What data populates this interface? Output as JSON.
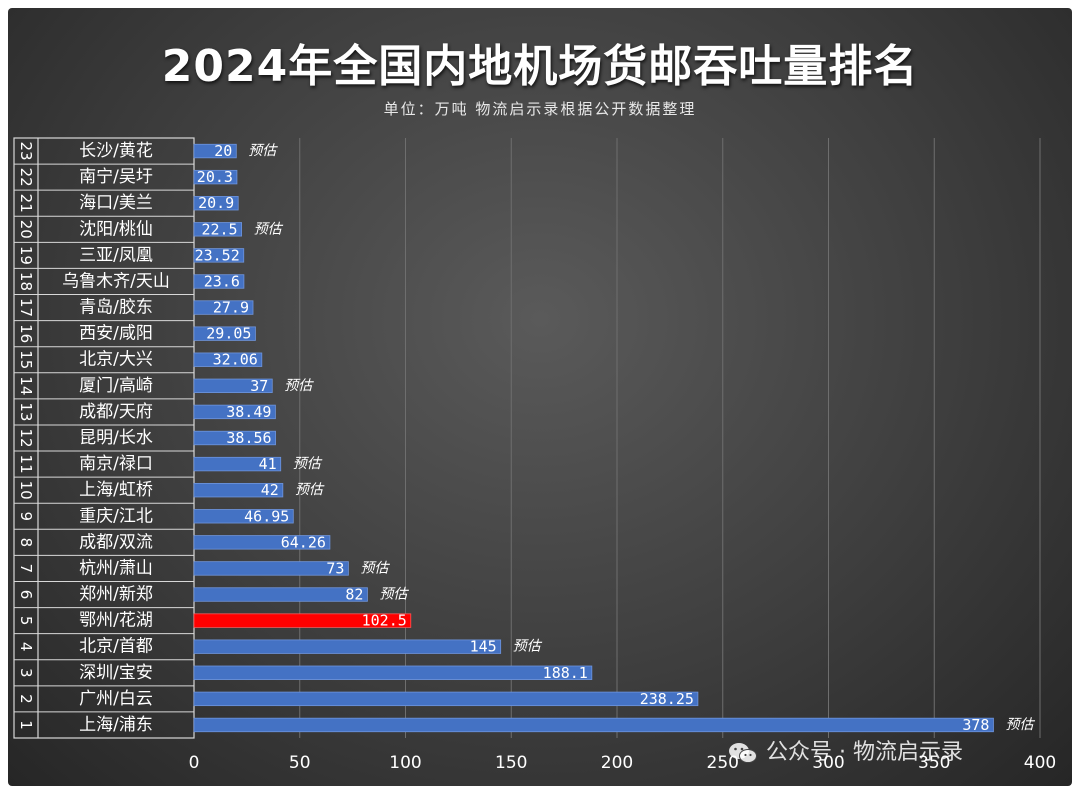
{
  "title": "2024年全国内地机场货邮吞吐量排名",
  "subtitle": "单位：万吨  物流启示录根据公开数据整理",
  "watermark": "公众号 · 物流启示录",
  "colors": {
    "bar": "#4472c4",
    "highlight": "#ff0000",
    "text": "#ffffff",
    "grid": "#6e6e6e"
  },
  "chart_data": {
    "type": "bar",
    "orientation": "horizontal",
    "xlim": [
      0,
      400
    ],
    "x_ticks": [
      "0",
      "50",
      "100",
      "150",
      "200",
      "250",
      "300",
      "350",
      "400"
    ],
    "grid": true,
    "ranks": [
      "1",
      "2",
      "3",
      "4",
      "5",
      "6",
      "7",
      "8",
      "9",
      "10",
      "11",
      "12",
      "13",
      "14",
      "15",
      "16",
      "17",
      "18",
      "19",
      "20",
      "21",
      "22",
      "23"
    ],
    "categories": [
      "上海/浦东",
      "广州/白云",
      "深圳/宝安",
      "北京/首都",
      "鄂州/花湖",
      "郑州/新郑",
      "杭州/萧山",
      "成都/双流",
      "重庆/江北",
      "上海/虹桥",
      "南京/禄口",
      "昆明/长水",
      "成都/天府",
      "厦门/高崎",
      "北京/大兴",
      "西安/咸阳",
      "青岛/胶东",
      "乌鲁木齐/天山",
      "三亚/凤凰",
      "沈阳/桃仙",
      "海口/美兰",
      "南宁/吴圩",
      "长沙/黄花"
    ],
    "values": [
      378,
      238.25,
      188.1,
      145,
      102.5,
      82,
      73,
      64.26,
      46.95,
      42,
      41,
      38.56,
      38.49,
      37,
      32.06,
      29.05,
      27.9,
      23.6,
      23.52,
      22.5,
      20.9,
      20.3,
      20
    ],
    "value_labels": [
      "378",
      "238.25",
      "188.1",
      "145",
      "102.5",
      "82",
      "73",
      "64.26",
      "46.95",
      "42",
      "41",
      "38.56",
      "38.49",
      "37",
      "32.06",
      "29.05",
      "27.9",
      "23.6",
      "23.52",
      "22.5",
      "20.9",
      "20.3",
      "20"
    ],
    "estimated": [
      true,
      false,
      false,
      true,
      false,
      true,
      true,
      false,
      false,
      true,
      true,
      false,
      false,
      true,
      false,
      false,
      false,
      false,
      false,
      true,
      false,
      false,
      true
    ],
    "estimate_label": "预估",
    "highlight_category": "鄂州/花湖"
  }
}
